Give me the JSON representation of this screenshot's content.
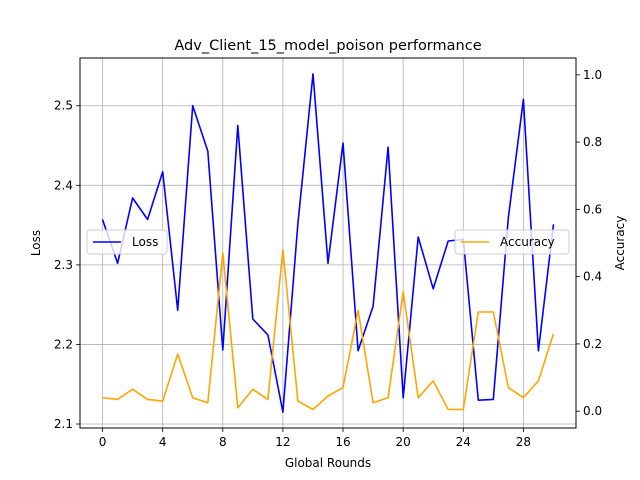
{
  "chart_data": {
    "type": "line",
    "title": "Adv_Client_15_model_poison performance",
    "xlabel": "Global Rounds",
    "ylabel_left": "Loss",
    "ylabel_right": "Accuracy",
    "x": [
      0,
      1,
      2,
      3,
      4,
      5,
      6,
      7,
      8,
      9,
      10,
      11,
      12,
      13,
      14,
      15,
      16,
      17,
      18,
      19,
      20,
      21,
      22,
      23,
      24,
      25,
      26,
      27,
      28,
      29,
      30
    ],
    "xticks": [
      0,
      4,
      8,
      12,
      16,
      20,
      24,
      28
    ],
    "xlim": [
      -1.5,
      31.5
    ],
    "ylim_left": [
      2.095,
      2.56
    ],
    "yticks_left": [
      2.1,
      2.2,
      2.3,
      2.4,
      2.5
    ],
    "ylim_right": [
      -0.05,
      1.05
    ],
    "yticks_right": [
      0.0,
      0.2,
      0.4,
      0.6,
      0.8,
      1.0
    ],
    "grid": true,
    "series": [
      {
        "name": "Loss",
        "axis": "left",
        "color": "#0000ff",
        "values": [
          2.357,
          2.302,
          2.384,
          2.357,
          2.417,
          2.243,
          2.5,
          2.443,
          2.193,
          2.475,
          2.232,
          2.212,
          2.115,
          2.352,
          2.54,
          2.302,
          2.453,
          2.192,
          2.248,
          2.448,
          2.133,
          2.335,
          2.27,
          2.33,
          2.332,
          2.13,
          2.131,
          2.36,
          2.508,
          2.192,
          2.351
        ]
      },
      {
        "name": "Accuracy",
        "axis": "right",
        "color": "#ffa500",
        "values": [
          0.04,
          0.035,
          0.065,
          0.035,
          0.03,
          0.17,
          0.04,
          0.025,
          0.47,
          0.01,
          0.065,
          0.035,
          0.48,
          0.03,
          0.005,
          0.045,
          0.07,
          0.3,
          0.025,
          0.04,
          0.355,
          0.04,
          0.09,
          0.005,
          0.005,
          0.295,
          0.295,
          0.07,
          0.04,
          0.09,
          0.23
        ]
      }
    ],
    "legends": [
      {
        "placement": "center-left",
        "series": "Loss"
      },
      {
        "placement": "center-right",
        "series": "Accuracy"
      }
    ]
  }
}
